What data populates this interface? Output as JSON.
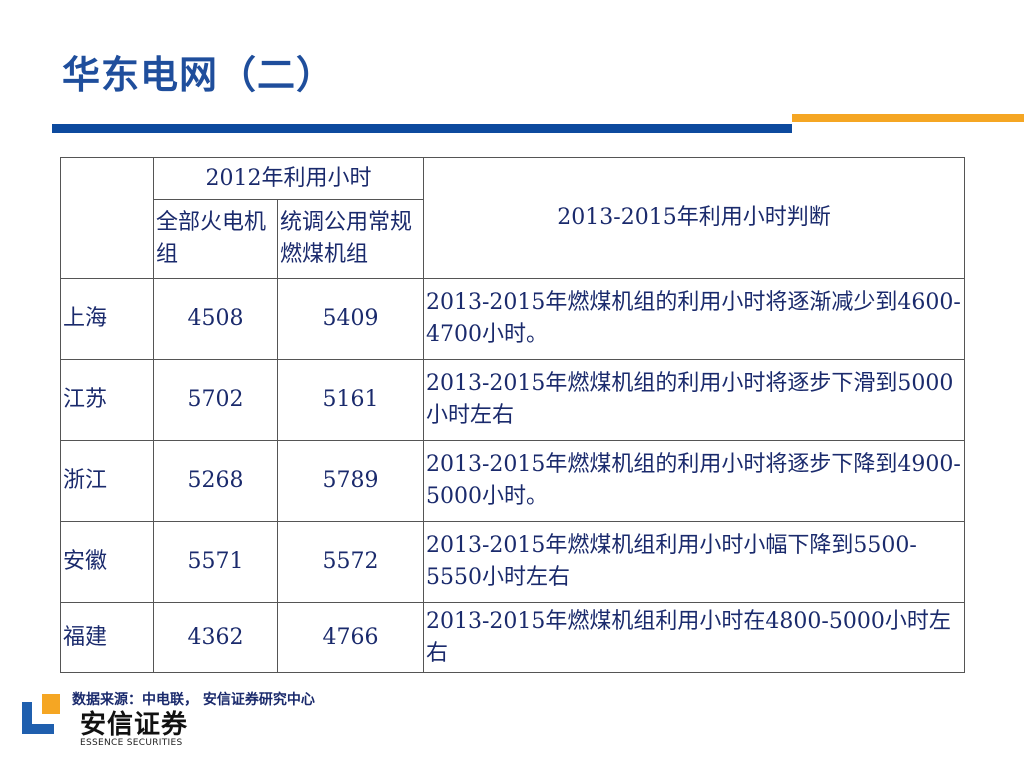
{
  "title": "华东电网（二）",
  "colors": {
    "title": "#1f4e9c",
    "bar_blue": "#0d4a9e",
    "bar_orange": "#f5a623",
    "table_text": "#1a2a6c",
    "logo_blue": "#1f5fae",
    "logo_orange": "#f5a623"
  },
  "table": {
    "header": {
      "group_2012": "2012年利用小时",
      "col_all_thermal": "全部火电机组",
      "col_coal_units": "统调公用常规燃煤机组",
      "col_judgment": "2013-2015年利用小时判断"
    },
    "rows": [
      {
        "region": "上海",
        "all_thermal": "4508",
        "coal_units": "5409",
        "judgment": "2013-2015年燃煤机组的利用小时将逐渐减少到4600-4700小时。"
      },
      {
        "region": "江苏",
        "all_thermal": "5702",
        "coal_units": "5161",
        "judgment": "2013-2015年燃煤机组的利用小时将逐步下滑到5000小时左右"
      },
      {
        "region": "浙江",
        "all_thermal": "5268",
        "coal_units": "5789",
        "judgment": "2013-2015年燃煤机组的利用小时将逐步下降到4900-5000小时。"
      },
      {
        "region": "安徽",
        "all_thermal": "5571",
        "coal_units": "5572",
        "judgment": "2013-2015年燃煤机组利用小时小幅下降到5500-5550小时左右"
      },
      {
        "region": "福建",
        "all_thermal": "4362",
        "coal_units": "4766",
        "judgment": "2013-2015年燃煤机组利用小时在4800-5000小时左右"
      }
    ]
  },
  "source_note": "数据来源：中电联， 安信证券研究中心",
  "logo": {
    "name_cn": "安信证券",
    "name_en": "ESSENCE SECURITIES",
    "icon": "essence-securities-logo-icon"
  }
}
